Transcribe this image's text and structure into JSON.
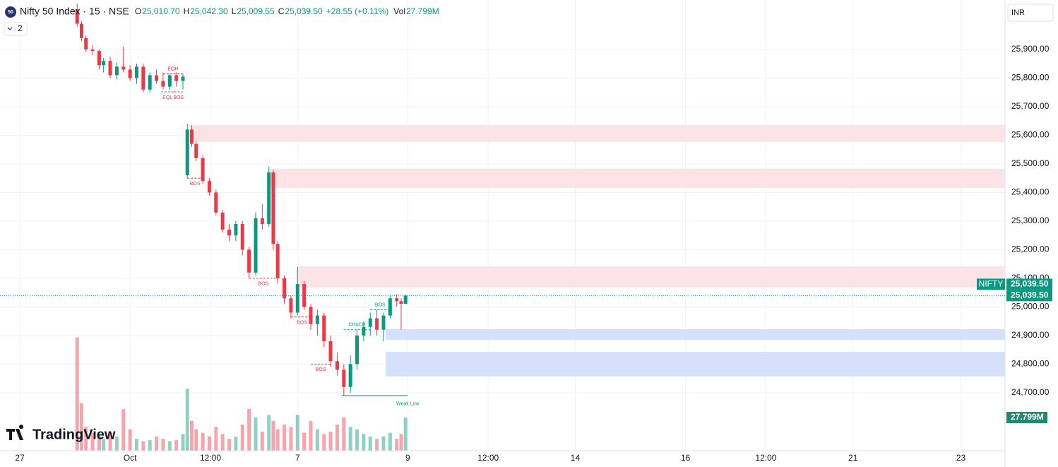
{
  "header": {
    "logo": "50",
    "symbol": "Nifty 50 Index · 15 · NSE",
    "ohlc": [
      {
        "key": "O",
        "value": "25,010.70"
      },
      {
        "key": "H",
        "value": "25,042.30"
      },
      {
        "key": "L",
        "value": "25,009.55"
      },
      {
        "key": "C",
        "value": "25,039.50"
      }
    ],
    "change": "+28.55 (+0.11%)",
    "vol_key": "Vol",
    "indicators": "2",
    "currency": "INR",
    "watermark": "TradingView"
  },
  "chart_data": {
    "type": "candlestick",
    "up_color": "#089981",
    "down_color": "#f23645",
    "xlim": [
      -9,
      447
    ],
    "ylim": [
      24497,
      26073
    ],
    "vlim": [
      0,
      100
    ],
    "xticks": [
      {
        "value": 0,
        "label": "27"
      },
      {
        "value": 50,
        "label": "Oct"
      },
      {
        "value": 86.5,
        "label": "12:00"
      },
      {
        "value": 126,
        "label": "7"
      },
      {
        "value": 176,
        "label": "9"
      },
      {
        "value": 212.5,
        "label": "12:00"
      },
      {
        "value": 252,
        "label": "14"
      },
      {
        "value": 302,
        "label": "16"
      },
      {
        "value": 338.5,
        "label": "12:00"
      },
      {
        "value": 378,
        "label": "21"
      },
      {
        "value": 427,
        "label": "23"
      }
    ],
    "yticks": [
      {
        "value": 24700,
        "label": "24,700.00"
      },
      {
        "value": 24800,
        "label": "24,800.00"
      },
      {
        "value": 24900,
        "label": "24,900.00"
      },
      {
        "value": 25000,
        "label": "25,000.00"
      },
      {
        "value": 25100,
        "label": "25,100.00"
      },
      {
        "value": 25200,
        "label": "25,200.00"
      },
      {
        "value": 25300,
        "label": "25,300.00"
      },
      {
        "value": 25400,
        "label": "25,400.00"
      },
      {
        "value": 25500,
        "label": "25,500.00"
      },
      {
        "value": 25600,
        "label": "25,600.00"
      },
      {
        "value": 25700,
        "label": "25,700.00"
      },
      {
        "value": 25800,
        "label": "25,800.00"
      },
      {
        "value": 25900,
        "label": "25,900.00"
      }
    ],
    "grid": true,
    "x": [
      26,
      28,
      30,
      33,
      36,
      38,
      41,
      44,
      47,
      50,
      53,
      56,
      59,
      62,
      65,
      68,
      71,
      74,
      76,
      78,
      80,
      83,
      86,
      89,
      92,
      95,
      98,
      101,
      104,
      107,
      110,
      113,
      115,
      117,
      120,
      123,
      126,
      129,
      132,
      135,
      138,
      141,
      144,
      147,
      150,
      153,
      156,
      159,
      162,
      165,
      168,
      171,
      173,
      175
    ],
    "open": [
      26040,
      25990,
      25940,
      25900,
      25895,
      25845,
      25860,
      25810,
      25840,
      25830,
      25800,
      25840,
      25760,
      25810,
      25790,
      25770,
      25810,
      25790,
      25460,
      25620,
      25570,
      25520,
      25440,
      25400,
      25330,
      25270,
      25250,
      25290,
      25200,
      25120,
      25310,
      25290,
      25470,
      25220,
      25100,
      25030,
      24980,
      25080,
      25000,
      24940,
      24970,
      24880,
      24810,
      24780,
      24720,
      24800,
      24900,
      24930,
      24960,
      24920,
      24970,
      25030,
      25020,
      25010.7
    ],
    "high": [
      26060,
      26000,
      25950,
      25915,
      25900,
      25870,
      25875,
      25855,
      25910,
      25845,
      25850,
      25850,
      25820,
      25830,
      25820,
      25815,
      25820,
      25815,
      25640,
      25635,
      25580,
      25530,
      25450,
      25410,
      25340,
      25290,
      25300,
      25300,
      25210,
      25330,
      25360,
      25490,
      25480,
      25230,
      25110,
      25040,
      25140,
      25090,
      25010,
      24990,
      24980,
      24900,
      24840,
      24800,
      24830,
      24920,
      24950,
      24980,
      24990,
      24980,
      25040,
      25045,
      25030,
      25042.3
    ],
    "low": [
      25980,
      25930,
      25890,
      25880,
      25830,
      25820,
      25800,
      25795,
      25820,
      25790,
      25780,
      25750,
      25750,
      25780,
      25760,
      25760,
      25770,
      25760,
      25450,
      25560,
      25510,
      25430,
      25390,
      25320,
      25260,
      25230,
      25230,
      25180,
      25100,
      25110,
      25270,
      25280,
      25200,
      25080,
      25010,
      24960,
      24970,
      24990,
      24920,
      24900,
      24860,
      24790,
      24760,
      24690,
      24700,
      24780,
      24880,
      24900,
      24900,
      24880,
      24960,
      25000,
      24920,
      25009.55
    ],
    "close": [
      25990,
      25940,
      25900,
      25895,
      25845,
      25860,
      25810,
      25840,
      25830,
      25800,
      25840,
      25760,
      25810,
      25790,
      25770,
      25810,
      25790,
      25805,
      25620,
      25570,
      25520,
      25440,
      25400,
      25330,
      25270,
      25250,
      25290,
      25200,
      25120,
      25310,
      25290,
      25470,
      25220,
      25100,
      25030,
      24980,
      25080,
      25000,
      24940,
      24970,
      24880,
      24810,
      24780,
      24720,
      24800,
      24900,
      24930,
      24960,
      24920,
      24970,
      25030,
      25020,
      25010.95,
      25039.5
    ],
    "volume": [
      95,
      40,
      20,
      15,
      12,
      10,
      14,
      12,
      35,
      18,
      10,
      8,
      9,
      12,
      10,
      8,
      9,
      14,
      52,
      25,
      18,
      15,
      12,
      20,
      14,
      10,
      12,
      22,
      35,
      28,
      16,
      30,
      25,
      18,
      22,
      20,
      30,
      15,
      25,
      18,
      14,
      16,
      22,
      28,
      20,
      18,
      14,
      12,
      10,
      12,
      15,
      10,
      14,
      27.799
    ],
    "zones": [
      {
        "from": 77,
        "top": 25636,
        "bottom": 25577,
        "color": "#fce3e5"
      },
      {
        "from": 113,
        "top": 25483,
        "bottom": 25416,
        "color": "#fce3e5"
      },
      {
        "from": 126,
        "top": 25142,
        "bottom": 25068,
        "color": "#fce3e5"
      },
      {
        "from": 166,
        "top": 24922,
        "bottom": 24885,
        "color": "#d5e1fb"
      },
      {
        "from": 166,
        "top": 24843,
        "bottom": 24757,
        "color": "#d5e1fb"
      }
    ],
    "structures": [
      {
        "label": "EQH",
        "from": 65,
        "to": 74,
        "price": 25815,
        "color": "#f23645",
        "side": "above"
      },
      {
        "label": "EQL",
        "from": 64,
        "to": 70,
        "price": 25752,
        "color": "#f23645",
        "side": "below"
      },
      {
        "label": "BOS",
        "from": 70,
        "to": 74,
        "price": 25752,
        "color": "#f23645",
        "side": "below"
      },
      {
        "label": "BOS",
        "from": 76,
        "to": 83,
        "price": 25450,
        "color": "#f23645",
        "side": "below"
      },
      {
        "label": "BOS",
        "from": 104,
        "to": 117,
        "price": 25100,
        "color": "#f23645",
        "side": "below"
      },
      {
        "label": "BOS",
        "from": 123,
        "to": 133,
        "price": 24965,
        "color": "#f23645",
        "side": "below"
      },
      {
        "label": "BOS",
        "from": 132,
        "to": 141,
        "price": 24800,
        "color": "#f23645",
        "side": "below"
      },
      {
        "label": "CHoCH",
        "from": 147,
        "to": 159,
        "price": 24920,
        "color": "#089981",
        "side": "above"
      },
      {
        "label": "BOS",
        "from": 159,
        "to": 168,
        "price": 24990,
        "color": "#089981",
        "side": "above"
      },
      {
        "label": "Weak Low",
        "from": 146,
        "to": 176,
        "price": 24690,
        "color": "#089981",
        "side": "end"
      }
    ],
    "symbol_tag": "NIFTY",
    "last_price": {
      "value": 25039.5,
      "label": "25,039.50"
    },
    "last_volume": {
      "value": 27.799,
      "label": "27.799M"
    }
  }
}
